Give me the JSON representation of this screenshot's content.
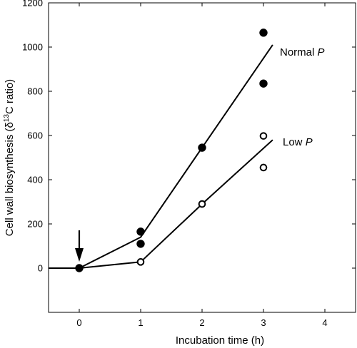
{
  "chart_data": {
    "type": "scatter",
    "xlabel": "Incubation time (h)",
    "ylabel": {
      "prefix": "Cell wall biosynthesis (δ",
      "sup": "13",
      "suffix": "C ratio)"
    },
    "xlim": [
      -0.5,
      4.5
    ],
    "ylim": [
      -200,
      1200
    ],
    "x_ticks": [
      0,
      1,
      2,
      3,
      4
    ],
    "y_ticks": [
      0,
      200,
      400,
      600,
      800,
      1000,
      1200
    ],
    "grid": false,
    "annotation": {
      "type": "arrow",
      "x": 0,
      "description": "downward arrow marking time 0"
    },
    "series": [
      {
        "name": "Normal P",
        "label_text": "Normal ",
        "label_italic": "P",
        "marker": "filled-circle",
        "points": [
          [
            0,
            0
          ],
          [
            1,
            165
          ],
          [
            1,
            110
          ],
          [
            2,
            545
          ],
          [
            3,
            1065
          ],
          [
            3,
            835
          ]
        ],
        "fit_line": [
          [
            -0.5,
            0
          ],
          [
            0,
            0
          ],
          [
            1,
            140
          ],
          [
            2,
            545
          ],
          [
            3.15,
            1010
          ]
        ]
      },
      {
        "name": "Low P",
        "label_text": "Low ",
        "label_italic": "P",
        "marker": "open-circle",
        "points": [
          [
            0,
            0
          ],
          [
            1,
            28
          ],
          [
            2,
            290
          ],
          [
            3,
            598
          ],
          [
            3,
            455
          ]
        ],
        "fit_line": [
          [
            0,
            0
          ],
          [
            1,
            28
          ],
          [
            2,
            290
          ],
          [
            3.15,
            580
          ]
        ]
      }
    ]
  }
}
